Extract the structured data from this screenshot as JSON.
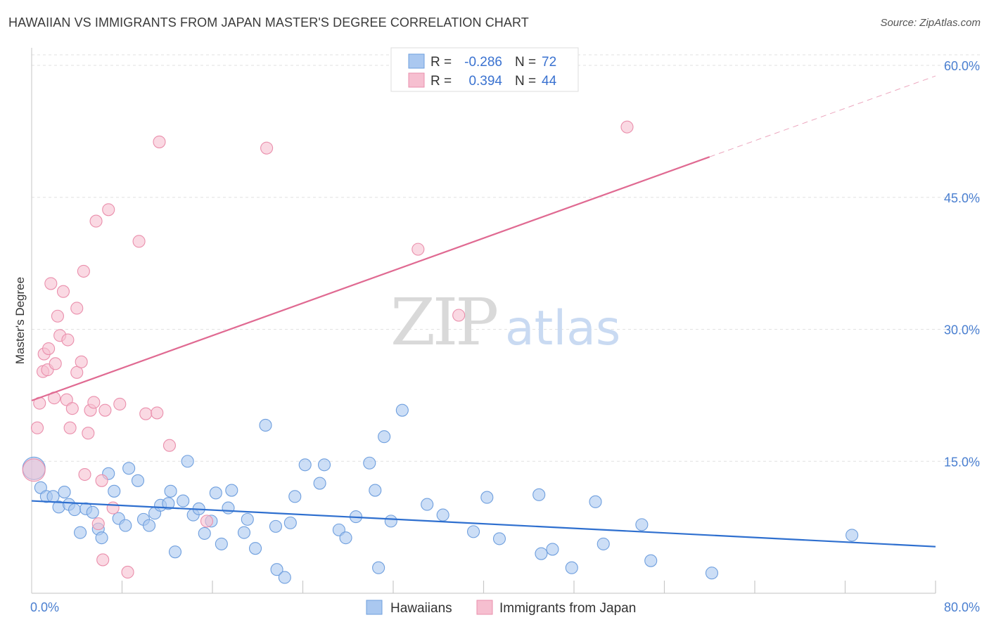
{
  "title": "HAWAIIAN VS IMMIGRANTS FROM JAPAN MASTER'S DEGREE CORRELATION CHART",
  "source": "Source: ZipAtlas.com",
  "watermark": {
    "zip": "ZIP",
    "atlas": "atlas"
  },
  "colors": {
    "blue_fill": "#aac8f0",
    "blue_stroke": "#6f9fde",
    "blue_line": "#2e6fcf",
    "pink_fill": "#f6bfd0",
    "pink_stroke": "#ea8fac",
    "pink_line": "#e06a92",
    "label": "#4a7fd0"
  },
  "chart_data": {
    "type": "scatter",
    "title": "HAWAIIAN VS IMMIGRANTS FROM JAPAN MASTER'S DEGREE CORRELATION CHART",
    "xlabel": "",
    "ylabel": "Master's Degree",
    "xlim": [
      0,
      80
    ],
    "ylim": [
      0,
      62
    ],
    "x_tick_labels": [
      "0.0%",
      "80.0%"
    ],
    "y_ticks": [
      15,
      30,
      45,
      60
    ],
    "y_tick_labels": [
      "15.0%",
      "30.0%",
      "45.0%",
      "60.0%"
    ],
    "stats": [
      {
        "r_label": "R =",
        "r": "-0.286",
        "n_label": "N =",
        "n": "72"
      },
      {
        "r_label": "R =",
        "r": "0.394",
        "n_label": "N =",
        "n": "44"
      }
    ],
    "legend": [
      "Hawaiians",
      "Immigrants from Japan"
    ],
    "series": [
      {
        "name": "Hawaiians",
        "trend": {
          "x": [
            0,
            80
          ],
          "y": [
            10.5,
            5.3
          ]
        },
        "points": [
          {
            "x": 0.2,
            "y": 14.2,
            "big": true
          },
          {
            "x": 0.8,
            "y": 12.0
          },
          {
            "x": 1.3,
            "y": 11.0
          },
          {
            "x": 1.9,
            "y": 11.0
          },
          {
            "x": 2.4,
            "y": 9.8
          },
          {
            "x": 2.9,
            "y": 11.5
          },
          {
            "x": 3.3,
            "y": 10.1
          },
          {
            "x": 3.8,
            "y": 9.5
          },
          {
            "x": 4.3,
            "y": 6.9
          },
          {
            "x": 4.8,
            "y": 9.6
          },
          {
            "x": 5.4,
            "y": 9.2
          },
          {
            "x": 5.9,
            "y": 7.3
          },
          {
            "x": 6.2,
            "y": 6.3
          },
          {
            "x": 6.8,
            "y": 13.6
          },
          {
            "x": 7.3,
            "y": 11.6
          },
          {
            "x": 7.7,
            "y": 8.5
          },
          {
            "x": 8.3,
            "y": 7.7
          },
          {
            "x": 8.6,
            "y": 14.2
          },
          {
            "x": 9.4,
            "y": 12.8
          },
          {
            "x": 9.9,
            "y": 8.4
          },
          {
            "x": 10.4,
            "y": 7.7
          },
          {
            "x": 10.9,
            "y": 9.1
          },
          {
            "x": 11.4,
            "y": 10.0
          },
          {
            "x": 12.1,
            "y": 10.2
          },
          {
            "x": 12.3,
            "y": 11.6
          },
          {
            "x": 12.7,
            "y": 4.7
          },
          {
            "x": 13.4,
            "y": 10.5
          },
          {
            "x": 13.8,
            "y": 15.0
          },
          {
            "x": 14.3,
            "y": 8.9
          },
          {
            "x": 14.8,
            "y": 9.6
          },
          {
            "x": 15.3,
            "y": 6.8
          },
          {
            "x": 15.9,
            "y": 8.2
          },
          {
            "x": 16.3,
            "y": 11.4
          },
          {
            "x": 16.8,
            "y": 5.6
          },
          {
            "x": 17.4,
            "y": 9.7
          },
          {
            "x": 17.7,
            "y": 11.7
          },
          {
            "x": 18.8,
            "y": 6.9
          },
          {
            "x": 19.1,
            "y": 8.4
          },
          {
            "x": 19.8,
            "y": 5.1
          },
          {
            "x": 20.7,
            "y": 19.1
          },
          {
            "x": 21.6,
            "y": 7.6
          },
          {
            "x": 21.7,
            "y": 2.7
          },
          {
            "x": 22.4,
            "y": 1.8
          },
          {
            "x": 22.9,
            "y": 8.0
          },
          {
            "x": 23.3,
            "y": 11.0
          },
          {
            "x": 24.2,
            "y": 14.6
          },
          {
            "x": 25.5,
            "y": 12.5
          },
          {
            "x": 25.9,
            "y": 14.6
          },
          {
            "x": 27.2,
            "y": 7.2
          },
          {
            "x": 27.8,
            "y": 6.3
          },
          {
            "x": 28.7,
            "y": 8.7
          },
          {
            "x": 29.9,
            "y": 14.8
          },
          {
            "x": 30.4,
            "y": 11.7
          },
          {
            "x": 30.7,
            "y": 2.9
          },
          {
            "x": 31.2,
            "y": 17.8
          },
          {
            "x": 31.8,
            "y": 8.2
          },
          {
            "x": 32.8,
            "y": 20.8
          },
          {
            "x": 35.0,
            "y": 10.1
          },
          {
            "x": 36.4,
            "y": 8.9
          },
          {
            "x": 39.1,
            "y": 7.0
          },
          {
            "x": 40.3,
            "y": 10.9
          },
          {
            "x": 41.4,
            "y": 6.2
          },
          {
            "x": 44.9,
            "y": 11.2
          },
          {
            "x": 45.1,
            "y": 4.5
          },
          {
            "x": 46.1,
            "y": 5.0
          },
          {
            "x": 47.8,
            "y": 2.9
          },
          {
            "x": 49.9,
            "y": 10.4
          },
          {
            "x": 50.6,
            "y": 5.6
          },
          {
            "x": 54.0,
            "y": 7.8
          },
          {
            "x": 54.8,
            "y": 3.7
          },
          {
            "x": 60.2,
            "y": 2.3
          },
          {
            "x": 72.6,
            "y": 6.6
          }
        ]
      },
      {
        "name": "Immigrants from Japan",
        "trend": {
          "x": [
            0,
            60
          ],
          "y": [
            21.9,
            49.6
          ]
        },
        "trend_dashed": {
          "x": [
            60,
            80
          ],
          "y": [
            49.6,
            58.8
          ]
        },
        "points": [
          {
            "x": 0.2,
            "y": 14.0,
            "big": true
          },
          {
            "x": 0.5,
            "y": 18.8
          },
          {
            "x": 0.7,
            "y": 21.6
          },
          {
            "x": 1.0,
            "y": 25.2
          },
          {
            "x": 1.1,
            "y": 27.2
          },
          {
            "x": 1.4,
            "y": 25.4
          },
          {
            "x": 1.5,
            "y": 27.8
          },
          {
            "x": 1.7,
            "y": 35.2
          },
          {
            "x": 2.0,
            "y": 22.2
          },
          {
            "x": 2.1,
            "y": 26.1
          },
          {
            "x": 2.3,
            "y": 31.5
          },
          {
            "x": 2.5,
            "y": 29.3
          },
          {
            "x": 2.8,
            "y": 34.3
          },
          {
            "x": 3.1,
            "y": 22.0
          },
          {
            "x": 3.2,
            "y": 28.8
          },
          {
            "x": 3.4,
            "y": 18.8
          },
          {
            "x": 3.6,
            "y": 21.0
          },
          {
            "x": 4.0,
            "y": 25.1
          },
          {
            "x": 4.0,
            "y": 32.4
          },
          {
            "x": 4.4,
            "y": 26.3
          },
          {
            "x": 4.6,
            "y": 36.6
          },
          {
            "x": 4.7,
            "y": 13.5
          },
          {
            "x": 5.0,
            "y": 18.2
          },
          {
            "x": 5.2,
            "y": 20.8
          },
          {
            "x": 5.5,
            "y": 21.7
          },
          {
            "x": 5.7,
            "y": 42.3
          },
          {
            "x": 5.9,
            "y": 7.9
          },
          {
            "x": 6.2,
            "y": 12.8
          },
          {
            "x": 6.3,
            "y": 3.8
          },
          {
            "x": 6.5,
            "y": 20.8
          },
          {
            "x": 6.8,
            "y": 43.6
          },
          {
            "x": 7.2,
            "y": 9.7
          },
          {
            "x": 7.8,
            "y": 21.5
          },
          {
            "x": 8.5,
            "y": 2.4
          },
          {
            "x": 9.5,
            "y": 40.0
          },
          {
            "x": 10.1,
            "y": 20.4
          },
          {
            "x": 11.1,
            "y": 20.5
          },
          {
            "x": 11.3,
            "y": 51.3
          },
          {
            "x": 12.2,
            "y": 16.8
          },
          {
            "x": 15.5,
            "y": 8.2
          },
          {
            "x": 20.8,
            "y": 50.6
          },
          {
            "x": 34.2,
            "y": 39.1
          },
          {
            "x": 37.8,
            "y": 31.6
          },
          {
            "x": 52.7,
            "y": 53.0
          }
        ]
      }
    ]
  }
}
